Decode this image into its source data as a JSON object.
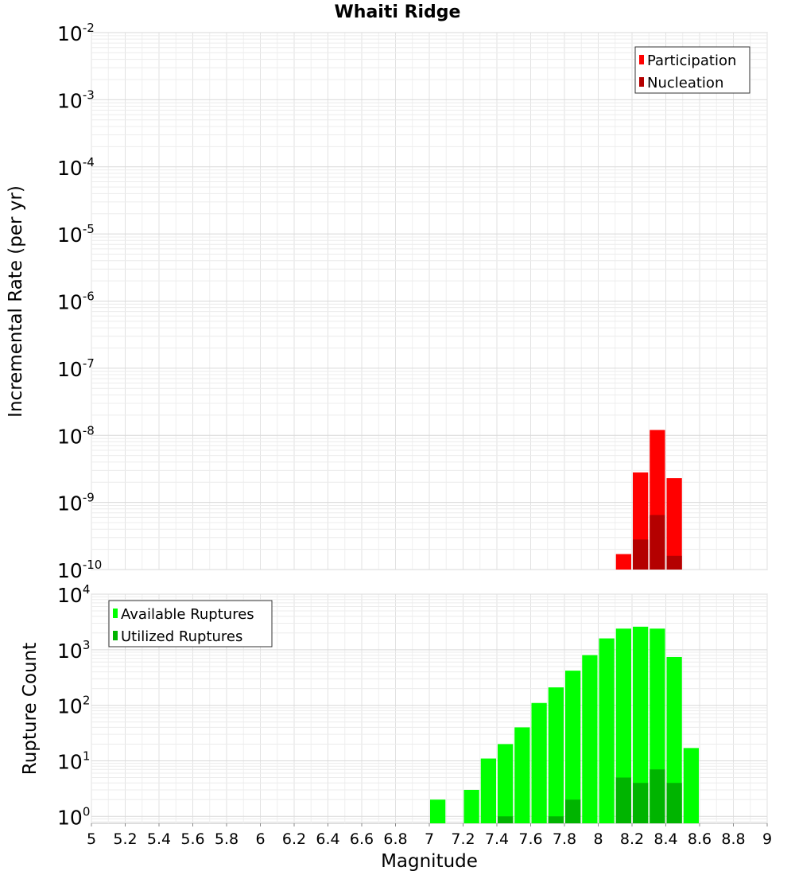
{
  "chart_data": [
    {
      "type": "bar",
      "title": "Whaiti Ridge",
      "ylabel": "Incremental Rate (per yr)",
      "yscale": "log",
      "ylim": [
        1e-10,
        0.01
      ],
      "xlim": [
        5,
        9
      ],
      "grid": true,
      "legend_position": "top-right",
      "y_ticks": [
        {
          "base": "10",
          "exp": "-2"
        },
        {
          "base": "10",
          "exp": "-3"
        },
        {
          "base": "10",
          "exp": "-4"
        },
        {
          "base": "10",
          "exp": "-5"
        },
        {
          "base": "10",
          "exp": "-6"
        },
        {
          "base": "10",
          "exp": "-7"
        },
        {
          "base": "10",
          "exp": "-8"
        },
        {
          "base": "10",
          "exp": "-9"
        },
        {
          "base": "10",
          "exp": "-10"
        }
      ],
      "series": [
        {
          "name": "Participation",
          "color": "#ff0000",
          "x": [
            8.15,
            8.25,
            8.35,
            8.45
          ],
          "values": [
            1.7e-10,
            2.8e-09,
            1.2e-08,
            2.3e-09
          ]
        },
        {
          "name": "Nucleation",
          "color": "#b40000",
          "x": [
            8.25,
            8.35,
            8.45
          ],
          "values": [
            2.8e-10,
            6.5e-10,
            1.6e-10
          ]
        }
      ]
    },
    {
      "type": "bar",
      "xlabel": "Magnitude",
      "ylabel": "Rupture Count",
      "yscale": "log",
      "ylim": [
        0.75,
        10000
      ],
      "xlim": [
        5,
        9
      ],
      "grid": true,
      "legend_position": "top-left",
      "x_ticks": [
        "5",
        "5.2",
        "5.4",
        "5.6",
        "5.8",
        "6",
        "6.2",
        "6.4",
        "6.6",
        "6.8",
        "7",
        "7.2",
        "7.4",
        "7.6",
        "7.8",
        "8",
        "8.2",
        "8.4",
        "8.6",
        "8.8",
        "9"
      ],
      "y_ticks": [
        {
          "base": "10",
          "exp": "4"
        },
        {
          "base": "10",
          "exp": "3"
        },
        {
          "base": "10",
          "exp": "2"
        },
        {
          "base": "10",
          "exp": "1"
        },
        {
          "base": "10",
          "exp": "0"
        }
      ],
      "series": [
        {
          "name": "Available Ruptures",
          "color": "#00ff00",
          "x": [
            7.05,
            7.25,
            7.35,
            7.45,
            7.55,
            7.65,
            7.75,
            7.85,
            7.95,
            8.05,
            8.15,
            8.25,
            8.35,
            8.45,
            8.55
          ],
          "values": [
            2,
            3,
            11,
            20,
            40,
            110,
            210,
            420,
            800,
            1600,
            2400,
            2600,
            2400,
            740,
            17
          ]
        },
        {
          "name": "Utilized Ruptures",
          "color": "#00b400",
          "x": [
            7.45,
            7.75,
            7.85,
            8.15,
            8.25,
            8.35,
            8.45
          ],
          "values": [
            1,
            1,
            2,
            5,
            4,
            7,
            4
          ]
        }
      ]
    }
  ]
}
